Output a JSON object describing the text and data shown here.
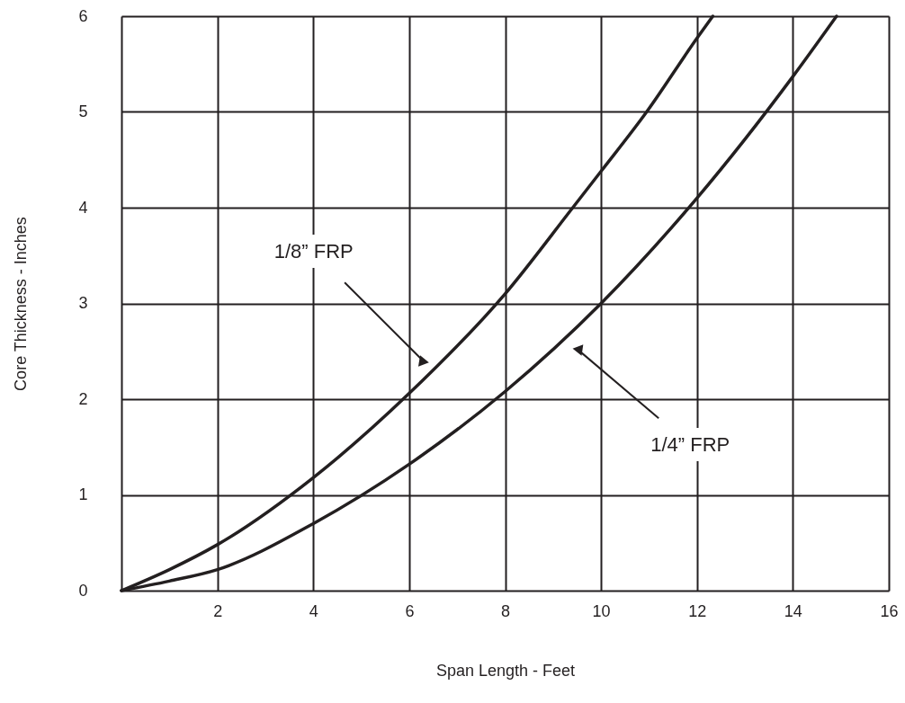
{
  "chart_data": {
    "type": "line",
    "xlabel": "Span Length - Feet",
    "ylabel": "Core Thickness - Inches",
    "xlim": [
      0,
      16
    ],
    "xticks": [
      {
        "value": 0,
        "label": null
      },
      2,
      4,
      6,
      8,
      10,
      12,
      14,
      16
    ],
    "ylim": [
      0,
      6
    ],
    "yticks": [
      0,
      1,
      2,
      3,
      4,
      5,
      6
    ],
    "grid": true,
    "marker": "none",
    "line_style": "solid",
    "series": [
      {
        "color": "#231f20",
        "x": [
          0,
          1,
          2,
          4,
          6,
          8,
          9.41,
          10,
          10.95,
          12,
          12.33
        ],
        "values": [
          0,
          0.22,
          0.48,
          1.18,
          2.06,
          3.1,
          4,
          4.38,
          5,
          5.77,
          6
        ]
      },
      {
        "color": "#231f20",
        "x": [
          0,
          1,
          2,
          4,
          6,
          8,
          10,
          12,
          14,
          14.91
        ],
        "values": [
          0,
          0.1,
          0.22,
          0.7,
          1.32,
          2.08,
          3.0,
          4.1,
          5.37,
          6
        ]
      }
    ],
    "annotations": [
      {
        "text": "1/8” FRP",
        "x": 6.31,
        "y": 2.39
      },
      {
        "text": "1/4” FRP",
        "x": 9.51,
        "y": 2.52
      }
    ]
  }
}
